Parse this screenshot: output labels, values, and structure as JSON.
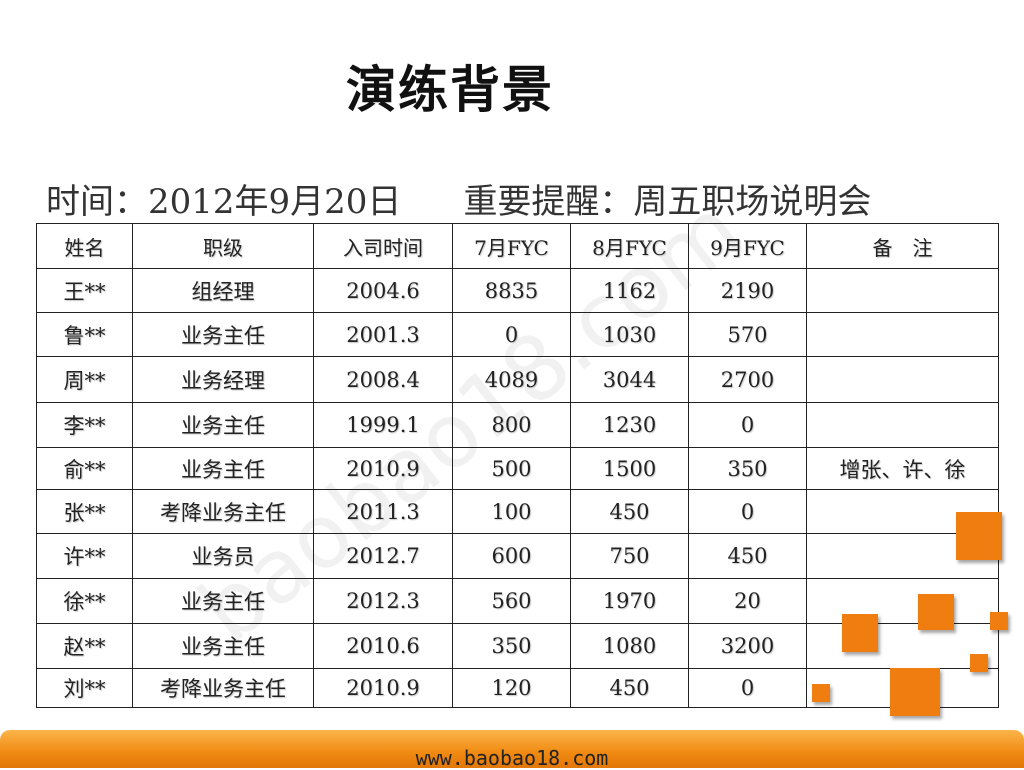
{
  "title": "演练背景",
  "info": {
    "time_label": "时间：2012年9月20日",
    "reminder_label": "重要提醒：周五职场说明会"
  },
  "table": {
    "headers": [
      "姓名",
      "职级",
      "入司时间",
      "7月FYC",
      "8月FYC",
      "9月FYC",
      "备　注"
    ],
    "rows": [
      [
        "王**",
        "组经理",
        "2004.6",
        "8835",
        "1162",
        "2190",
        ""
      ],
      [
        "鲁**",
        "业务主任",
        "2001.3",
        "0",
        "1030",
        "570",
        ""
      ],
      [
        "周**",
        "业务经理",
        "2008.4",
        "4089",
        "3044",
        "2700",
        ""
      ],
      [
        "李**",
        "业务主任",
        "1999.1",
        "800",
        "1230",
        "0",
        ""
      ],
      [
        "俞**",
        "业务主任",
        "2010.9",
        "500",
        "1500",
        "350",
        "增张、许、徐"
      ],
      [
        "张**",
        "考降业务主任",
        "2011.3",
        "100",
        "450",
        "0",
        ""
      ],
      [
        "许**",
        "业务员",
        "2012.7",
        "600",
        "750",
        "450",
        ""
      ],
      [
        "徐**",
        "业务主任",
        "2012.3",
        "560",
        "1970",
        "20",
        ""
      ],
      [
        "赵**",
        "业务主任",
        "2010.6",
        "350",
        "1080",
        "3200",
        ""
      ],
      [
        "刘**",
        "考降业务主任",
        "2010.9",
        "120",
        "450",
        "0",
        ""
      ]
    ]
  },
  "watermark": "baobao18.com",
  "footer": {
    "url": "www.baobao18.com"
  },
  "colors": {
    "accent": "#f07d10",
    "footer_light": "#fbb44a"
  }
}
